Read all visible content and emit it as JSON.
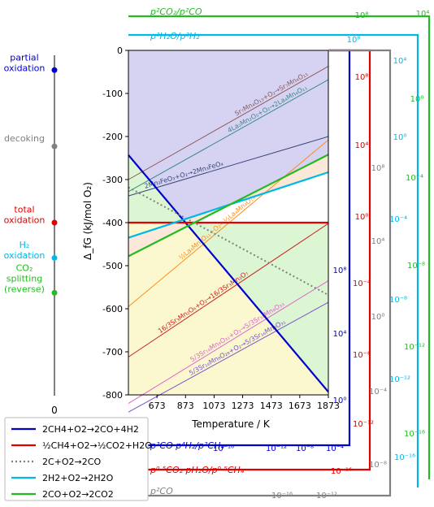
{
  "chart_data": {
    "type": "line",
    "title": "",
    "ylabel": "Δ_fG (kJ/mol O₂)",
    "xlabel": "Temperature / K",
    "xlim": [
      473,
      1873
    ],
    "ylim": [
      -800,
      0
    ],
    "x_ticks": [
      "673",
      "873",
      "1073",
      "1273",
      "1473",
      "1673",
      "1873"
    ],
    "y_ticks": [
      "0",
      "-100",
      "-200",
      "-300",
      "-400",
      "-500",
      "-600",
      "-700",
      "-800"
    ],
    "left_axis": {
      "zero_label": "0",
      "markers": [
        {
          "label": "partial oxidation",
          "lines": [
            "partial",
            "oxidation"
          ],
          "value": -8,
          "color": "#0000cc"
        },
        {
          "label": "decoking",
          "lines": [
            "decoking"
          ],
          "value": -223,
          "color": "#808080"
        },
        {
          "label": "total oxidation",
          "lines": [
            "total",
            "oxidation"
          ],
          "value": -400,
          "color": "#e00000"
        },
        {
          "label": "H2 oxidation",
          "lines": [
            "H₂",
            "oxidation"
          ],
          "value": -482,
          "color": "#00b8e6"
        },
        {
          "label": "CO2 splitting (reverse)",
          "lines": [
            "CO₂",
            "splitting",
            "(reverse)"
          ],
          "value": -563,
          "color": "#22bb22"
        }
      ]
    },
    "series": [
      {
        "name": "2CH4+O2→2CO+4H2",
        "color": "#0000cc",
        "x": [
          473,
          1873
        ],
        "y": [
          -243,
          -793
        ]
      },
      {
        "name": "½CH4+O2→½CO2+H2O",
        "color": "#e00000",
        "x": [
          473,
          1873
        ],
        "y": [
          -400,
          -400
        ]
      },
      {
        "name": "2C+O2→2CO",
        "color": "#808080",
        "dash": true,
        "x": [
          473,
          1873
        ],
        "y": [
          -318,
          -568
        ]
      },
      {
        "name": "2H2+O2→2H2O",
        "color": "#00b8e6",
        "x": [
          473,
          1873
        ],
        "y": [
          -435,
          -283
        ]
      },
      {
        "name": "2CO+O2→2CO2",
        "color": "#22bb22",
        "x": [
          473,
          1873
        ],
        "y": [
          -478,
          -242
        ]
      }
    ],
    "reaction_lines": [
      {
        "label": "Sr7Mn4O13+O2→Sr7Mn4O15",
        "color": "#8b5a5a",
        "x": [
          473,
          1873
        ],
        "y": [
          -300,
          -37
        ]
      },
      {
        "label": "4La2Mn2O5+O2→2La4Mn4O11",
        "color": "#3b8a8a",
        "x": [
          473,
          1873
        ],
        "y": [
          -328,
          -68
        ]
      },
      {
        "label": "2Mn3FeO3+O2→2Mn3FeO4",
        "color": "#3a4a7a",
        "x": [
          473,
          1873
        ],
        "y": [
          -338,
          -200
        ]
      },
      {
        "label": "½La4Mn4O11+O2→½La4Mn4O13",
        "color": "#ff8c1a",
        "x": [
          473,
          1873
        ],
        "y": [
          -595,
          -208
        ]
      },
      {
        "label": "16/3Sr3Mn2O6+O2→16/3Sr3Mn2O7",
        "color": "#cc2222",
        "x": [
          473,
          1873
        ],
        "y": [
          -712,
          -402
        ]
      },
      {
        "label": "5/3Sr16Mn8O31+O2→5/3Sr16Mn8O33",
        "color": "#dd66cc",
        "x": [
          473,
          1873
        ],
        "y": [
          -820,
          -535
        ]
      },
      {
        "label": "5/3Sr16Mn8O28+O2→5/3Sr16Mn8O31",
        "color": "#7a55c8",
        "x": [
          473,
          1873
        ],
        "y": [
          -840,
          -585
        ]
      }
    ],
    "reaction_labels": [
      {
        "text": "Sr₇Mn₄O₁₃+O₂→Sr₇Mn₄O₁₅",
        "color": "#8b5a5a"
      },
      {
        "text": "4La₂Mn₂O₅+O₂→2La₄Mn₄O₁₁",
        "color": "#3b8a8a"
      },
      {
        "text": "2Mn₃FeO₃+O₂→2Mn₃FeO₄",
        "color": "#3a4a7a"
      },
      {
        "text": "½La₄Mn₄O₁₁+O₂→½La₄Mn₄O₁₃",
        "color": "#ff8c1a"
      },
      {
        "text": "16/3Sr₃Mn₂O₆+O₂→16/3Sr₃Mn₂O₇",
        "color": "#cc2222"
      },
      {
        "text": "5/3Sr₁₆Mn₈O₃₁+O₂→5/3Sr₁₆Mn₈O₃₃",
        "color": "#dd66cc"
      },
      {
        "text": "5/3Sr₁₆Mn₈O₂₈+O₂→5/3Sr₁₆Mn₈O₃₁",
        "color": "#7a55c8"
      }
    ],
    "nomographs": [
      {
        "label": "p²CO₂/p²CO",
        "color": "#22bb22",
        "ticks": [
          "10⁸",
          "10⁴",
          "10⁰",
          "10⁻⁴",
          "10⁻⁸",
          "10⁻¹²",
          "10⁻¹⁶"
        ]
      },
      {
        "label": "p²H₂O/p²H₂",
        "color": "#00b8e6",
        "ticks": [
          "10⁸",
          "10⁴",
          "10⁰",
          "10⁻⁴",
          "10⁻⁸",
          "10⁻¹²",
          "10⁻¹⁶"
        ]
      },
      {
        "label": "p²CO·p⁴H₂/p²CH₄",
        "color": "#0000cc",
        "ticks": [
          "10⁸",
          "10⁴",
          "10⁰",
          "10⁻¹⁶",
          "10⁻¹²",
          "10⁻⁸",
          "10⁻⁴"
        ]
      },
      {
        "label": "p⁰·⁵CO₂·pH₂O/p⁰·⁵CH₄",
        "color": "#e00000",
        "ticks": [
          "10⁸",
          "10⁴",
          "10⁰",
          "10⁻⁴",
          "10⁻⁸",
          "10⁻¹²",
          "10⁻¹⁶"
        ]
      },
      {
        "label": "p²CO",
        "color": "#808080",
        "ticks": [
          "10⁸",
          "10⁴",
          "10⁰",
          "10⁻⁴",
          "10⁻⁸",
          "10⁻¹⁶",
          "10⁻¹²"
        ]
      }
    ],
    "legend_position": "bottom-left",
    "grid": false
  }
}
